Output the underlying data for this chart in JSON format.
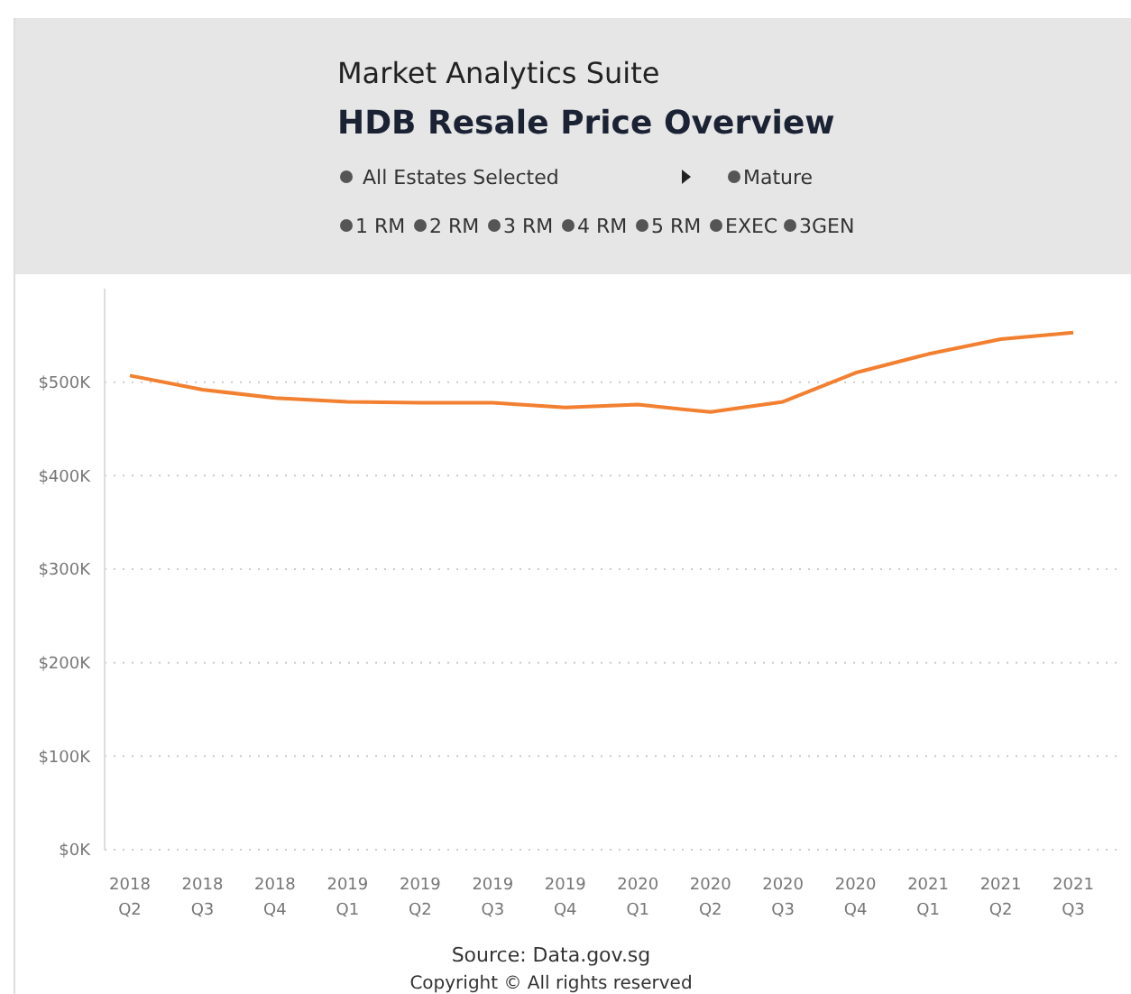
{
  "chart_data": {
    "type": "line",
    "title": "HDB Resale Price Overview",
    "subtitle": "Market Analytics Suite",
    "categories": [
      "2018 Q2",
      "2018 Q3",
      "2018 Q4",
      "2019 Q1",
      "2019 Q2",
      "2019 Q3",
      "2019 Q4",
      "2020 Q1",
      "2020 Q2",
      "2020 Q3",
      "2020 Q4",
      "2021 Q1",
      "2021 Q2",
      "2021 Q3"
    ],
    "series": [
      {
        "color": "#f28030",
        "values": [
          507000,
          492000,
          483000,
          479000,
          478000,
          478000,
          473000,
          476000,
          468000,
          479000,
          510000,
          530000,
          546000,
          553000
        ]
      }
    ],
    "ylim": [
      0,
      600000
    ],
    "yticks": [
      {
        "value": 0,
        "label": "$0K"
      },
      {
        "value": 100000,
        "label": "$100K"
      },
      {
        "value": 200000,
        "label": "$200K"
      },
      {
        "value": 300000,
        "label": "$300K"
      },
      {
        "value": 400000,
        "label": "$400K"
      },
      {
        "value": 500000,
        "label": "$500K"
      }
    ],
    "grid": "y",
    "marker": "none",
    "line_style": "solid",
    "annotations": [
      "All Estates Selected",
      "Mature",
      "1 RM",
      "2 RM",
      "3 RM",
      "4 RM",
      "5 RM",
      "EXEC",
      "3GEN",
      "Source: Data.gov.sg",
      "Copyright © All rights reserved"
    ]
  }
}
